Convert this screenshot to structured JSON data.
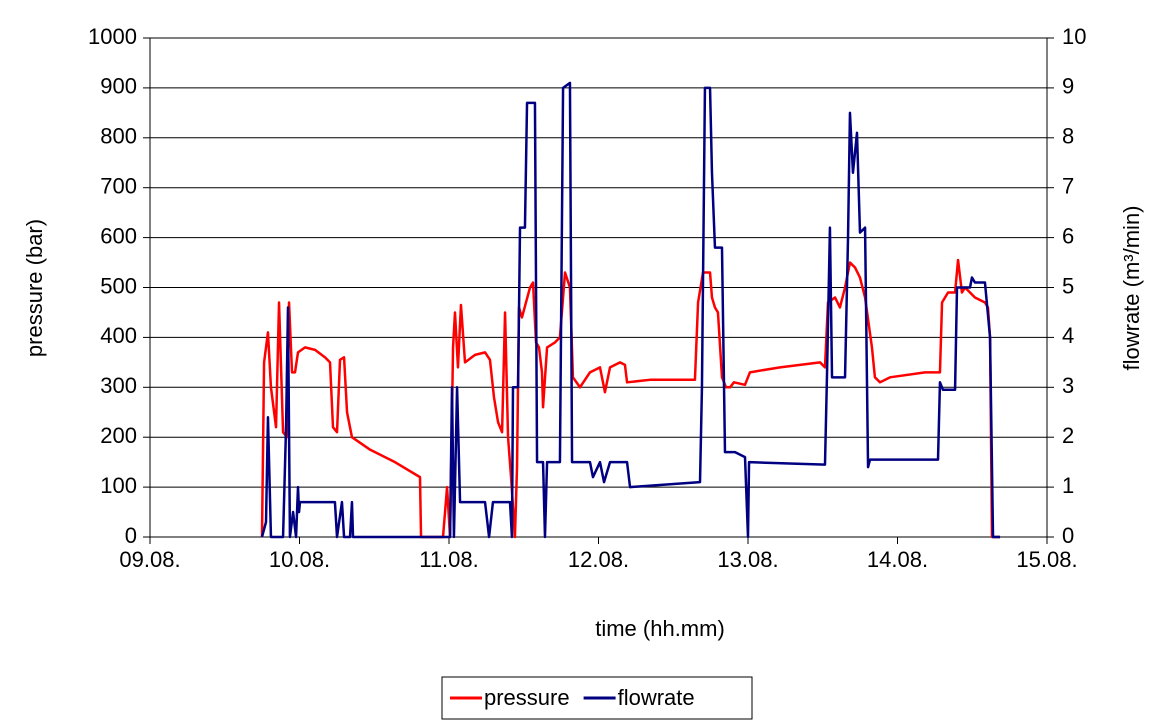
{
  "chart_data": {
    "type": "line",
    "xlabel": "time (hh.mm)",
    "ylabel": "pressure (bar)",
    "y2label": "flowrate (m³/min)",
    "xlim": [
      9,
      15
    ],
    "xticks": [
      {
        "value": 9,
        "label": "09.08."
      },
      {
        "value": 10,
        "label": "10.08."
      },
      {
        "value": 11,
        "label": "11.08."
      },
      {
        "value": 12,
        "label": "12.08."
      },
      {
        "value": 13,
        "label": "13.08."
      },
      {
        "value": 14,
        "label": "14.08."
      },
      {
        "value": 15,
        "label": "15.08."
      }
    ],
    "ylim": [
      0,
      1000
    ],
    "yticks": [
      0,
      100,
      200,
      300,
      400,
      500,
      600,
      700,
      800,
      900,
      1000
    ],
    "y2lim": [
      0,
      10
    ],
    "y2ticks": [
      0,
      1,
      2,
      3,
      4,
      5,
      6,
      7,
      8,
      9,
      10
    ],
    "grid": true,
    "legend": "bottom",
    "series": [
      {
        "name": "pressure",
        "color": "#ff0000",
        "x": [
          9.749,
          9.763,
          9.789,
          9.809,
          9.843,
          9.863,
          9.89,
          9.916,
          9.93,
          9.95,
          9.97,
          9.99,
          10.037,
          10.104,
          10.171,
          10.204,
          10.224,
          10.251,
          10.271,
          10.298,
          10.318,
          10.351,
          10.472,
          10.639,
          10.806,
          10.813,
          10.96,
          10.987,
          11.007,
          11.027,
          11.04,
          11.06,
          11.08,
          11.107,
          11.174,
          11.241,
          11.274,
          11.301,
          11.328,
          11.355,
          11.375,
          11.395,
          11.415,
          11.441,
          11.455,
          11.468,
          11.488,
          11.515,
          11.542,
          11.562,
          11.582,
          11.602,
          11.622,
          11.629,
          11.656,
          11.709,
          11.742,
          11.776,
          11.809,
          11.829,
          11.876,
          11.943,
          12.01,
          12.03,
          12.043,
          12.077,
          12.144,
          12.177,
          12.191,
          12.344,
          12.645,
          12.666,
          12.699,
          12.746,
          12.759,
          12.779,
          12.799,
          12.826,
          12.853,
          12.88,
          12.906,
          12.98,
          13.013,
          13.214,
          13.482,
          13.515,
          13.535,
          13.582,
          13.615,
          13.649,
          13.682,
          13.716,
          13.749,
          13.783,
          13.829,
          13.849,
          13.883,
          13.95,
          14.184,
          14.284,
          14.298,
          14.338,
          14.385,
          14.405,
          14.431,
          14.452,
          14.518,
          14.585,
          14.605,
          14.619,
          14.632,
          14.686
        ],
        "values": [
          0,
          350,
          410,
          300,
          220,
          470,
          210,
          200,
          470,
          330,
          330,
          370,
          380,
          375,
          360,
          350,
          220,
          210,
          355,
          360,
          250,
          200,
          175,
          150,
          120,
          0,
          0,
          100,
          0,
          380,
          450,
          340,
          465,
          350,
          365,
          370,
          355,
          280,
          230,
          210,
          450,
          200,
          120,
          0,
          140,
          460,
          440,
          470,
          500,
          510,
          390,
          380,
          330,
          260,
          380,
          390,
          400,
          530,
          500,
          320,
          300,
          330,
          340,
          310,
          290,
          340,
          350,
          345,
          310,
          315,
          315,
          470,
          530,
          530,
          480,
          460,
          450,
          320,
          300,
          300,
          310,
          305,
          330,
          340,
          350,
          340,
          470,
          480,
          460,
          500,
          550,
          540,
          520,
          480,
          380,
          320,
          310,
          320,
          330,
          330,
          470,
          490,
          490,
          555,
          490,
          500,
          480,
          470,
          460,
          400,
          0,
          0
        ]
      },
      {
        "name": "flowrate",
        "color": "#000080",
        "axis": "y2",
        "x": [
          9.749,
          9.776,
          9.789,
          9.809,
          9.87,
          9.89,
          9.91,
          9.923,
          9.936,
          9.957,
          9.977,
          9.99,
          9.997,
          10.003,
          10.237,
          10.251,
          10.284,
          10.298,
          10.338,
          10.351,
          10.358,
          11.007,
          11.02,
          11.033,
          11.054,
          11.074,
          11.241,
          11.268,
          11.294,
          11.408,
          11.421,
          11.428,
          11.462,
          11.475,
          11.508,
          11.522,
          11.575,
          11.589,
          11.629,
          11.642,
          11.656,
          11.742,
          11.763,
          11.809,
          11.823,
          11.943,
          11.963,
          12.01,
          12.037,
          12.077,
          12.191,
          12.211,
          12.679,
          12.692,
          12.712,
          12.746,
          12.759,
          12.779,
          12.826,
          12.846,
          12.913,
          12.98,
          13.0,
          13.007,
          13.515,
          13.528,
          13.548,
          13.562,
          13.649,
          13.669,
          13.682,
          13.702,
          13.729,
          13.749,
          13.783,
          13.803,
          13.816,
          14.271,
          14.284,
          14.304,
          14.385,
          14.398,
          14.485,
          14.498,
          14.518,
          14.585,
          14.619,
          14.639,
          14.686
        ],
        "values": [
          0,
          0.3,
          2.4,
          0,
          0,
          0,
          2.2,
          4.6,
          0,
          0.5,
          0,
          1.0,
          0.5,
          0.7,
          0.7,
          0,
          0.7,
          0,
          0,
          0.7,
          0,
          0,
          3.0,
          0,
          3.0,
          0.7,
          0.7,
          0,
          0.7,
          0.7,
          0,
          3.0,
          3.0,
          6.2,
          6.2,
          8.7,
          8.7,
          1.5,
          1.5,
          0,
          1.5,
          1.5,
          9.0,
          9.1,
          1.5,
          1.5,
          1.2,
          1.5,
          1.1,
          1.5,
          1.5,
          1.0,
          1.1,
          3.0,
          9.0,
          9.0,
          7.3,
          5.8,
          5.8,
          1.7,
          1.7,
          1.6,
          0,
          1.5,
          1.45,
          3.2,
          6.2,
          3.2,
          3.2,
          6.0,
          8.5,
          7.3,
          8.1,
          6.1,
          6.2,
          1.4,
          1.55,
          1.55,
          3.1,
          2.95,
          2.95,
          5.0,
          5.0,
          5.2,
          5.1,
          5.1,
          4.0,
          0,
          0
        ]
      }
    ]
  }
}
